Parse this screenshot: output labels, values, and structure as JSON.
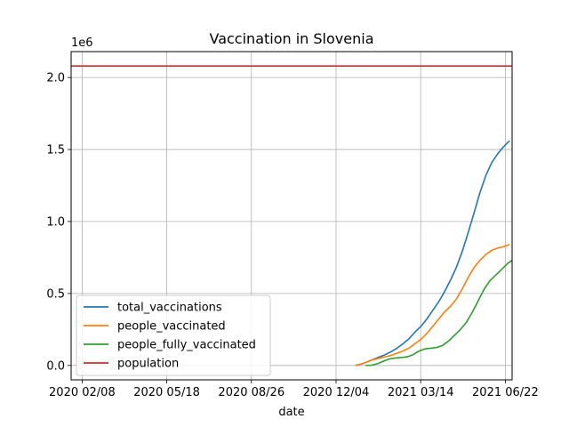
{
  "chart_data": {
    "type": "line",
    "title": "Vaccination in Slovenia",
    "xlabel": "date",
    "ylabel": "",
    "y_offset_label": "1e6",
    "x_range": [
      "2020-01-26",
      "2021-06-30"
    ],
    "y_range": [
      -100000,
      2180000
    ],
    "x_ticks": [
      {
        "date": "2020-02-08",
        "label": "2020 02/08"
      },
      {
        "date": "2020-05-18",
        "label": "2020 05/18"
      },
      {
        "date": "2020-08-26",
        "label": "2020 08/26"
      },
      {
        "date": "2020-12-04",
        "label": "2020 12/04"
      },
      {
        "date": "2021-03-14",
        "label": "2021 03/14"
      },
      {
        "date": "2021-06-22",
        "label": "2021 06/22"
      }
    ],
    "y_ticks": [
      {
        "value": 0,
        "label": "0.0"
      },
      {
        "value": 500000,
        "label": "0.5"
      },
      {
        "value": 1000000,
        "label": "1.0"
      },
      {
        "value": 1500000,
        "label": "1.5"
      },
      {
        "value": 2000000,
        "label": "2.0"
      }
    ],
    "grid": true,
    "legend_position": "lower-left",
    "series": [
      {
        "name": "total_vaccinations",
        "color": "#1f77b4",
        "points": [
          [
            "2020-12-27",
            0
          ],
          [
            "2021-01-03",
            10000
          ],
          [
            "2021-01-10",
            25000
          ],
          [
            "2021-01-17",
            42000
          ],
          [
            "2021-01-24",
            58000
          ],
          [
            "2021-01-31",
            75000
          ],
          [
            "2021-02-07",
            95000
          ],
          [
            "2021-02-14",
            120000
          ],
          [
            "2021-02-21",
            150000
          ],
          [
            "2021-02-28",
            185000
          ],
          [
            "2021-03-07",
            230000
          ],
          [
            "2021-03-14",
            270000
          ],
          [
            "2021-03-21",
            320000
          ],
          [
            "2021-03-28",
            380000
          ],
          [
            "2021-04-04",
            440000
          ],
          [
            "2021-04-11",
            510000
          ],
          [
            "2021-04-18",
            590000
          ],
          [
            "2021-04-25",
            680000
          ],
          [
            "2021-05-02",
            790000
          ],
          [
            "2021-05-09",
            920000
          ],
          [
            "2021-05-16",
            1060000
          ],
          [
            "2021-05-23",
            1200000
          ],
          [
            "2021-05-30",
            1320000
          ],
          [
            "2021-06-06",
            1410000
          ],
          [
            "2021-06-13",
            1470000
          ],
          [
            "2021-06-20",
            1520000
          ],
          [
            "2021-06-27",
            1560000
          ]
        ]
      },
      {
        "name": "people_vaccinated",
        "color": "#ff7f0e",
        "points": [
          [
            "2020-12-27",
            0
          ],
          [
            "2021-01-03",
            10000
          ],
          [
            "2021-01-10",
            25000
          ],
          [
            "2021-01-17",
            40000
          ],
          [
            "2021-01-24",
            50000
          ],
          [
            "2021-01-31",
            60000
          ],
          [
            "2021-02-07",
            70000
          ],
          [
            "2021-02-14",
            85000
          ],
          [
            "2021-02-21",
            100000
          ],
          [
            "2021-02-28",
            120000
          ],
          [
            "2021-03-07",
            150000
          ],
          [
            "2021-03-14",
            180000
          ],
          [
            "2021-03-21",
            220000
          ],
          [
            "2021-03-28",
            270000
          ],
          [
            "2021-04-04",
            320000
          ],
          [
            "2021-04-11",
            370000
          ],
          [
            "2021-04-18",
            410000
          ],
          [
            "2021-04-25",
            460000
          ],
          [
            "2021-05-02",
            530000
          ],
          [
            "2021-05-09",
            610000
          ],
          [
            "2021-05-16",
            680000
          ],
          [
            "2021-05-23",
            730000
          ],
          [
            "2021-05-30",
            770000
          ],
          [
            "2021-06-06",
            800000
          ],
          [
            "2021-06-13",
            815000
          ],
          [
            "2021-06-20",
            825000
          ],
          [
            "2021-06-27",
            840000
          ]
        ]
      },
      {
        "name": "people_fully_vaccinated",
        "color": "#2ca02c",
        "points": [
          [
            "2021-01-08",
            0
          ],
          [
            "2021-01-15",
            2000
          ],
          [
            "2021-01-22",
            12000
          ],
          [
            "2021-01-29",
            30000
          ],
          [
            "2021-02-05",
            45000
          ],
          [
            "2021-02-12",
            52000
          ],
          [
            "2021-02-19",
            55000
          ],
          [
            "2021-02-26",
            60000
          ],
          [
            "2021-03-05",
            75000
          ],
          [
            "2021-03-12",
            100000
          ],
          [
            "2021-03-19",
            115000
          ],
          [
            "2021-03-26",
            120000
          ],
          [
            "2021-04-02",
            125000
          ],
          [
            "2021-04-09",
            140000
          ],
          [
            "2021-04-16",
            170000
          ],
          [
            "2021-04-23",
            210000
          ],
          [
            "2021-04-30",
            250000
          ],
          [
            "2021-05-07",
            300000
          ],
          [
            "2021-05-14",
            370000
          ],
          [
            "2021-05-21",
            450000
          ],
          [
            "2021-05-28",
            530000
          ],
          [
            "2021-06-04",
            590000
          ],
          [
            "2021-06-11",
            630000
          ],
          [
            "2021-06-18",
            670000
          ],
          [
            "2021-06-25",
            710000
          ],
          [
            "2021-06-30",
            730000
          ]
        ]
      },
      {
        "name": "population",
        "color": "#d62728",
        "points": [
          [
            "2020-01-26",
            2080000
          ],
          [
            "2021-06-30",
            2080000
          ]
        ]
      }
    ]
  }
}
